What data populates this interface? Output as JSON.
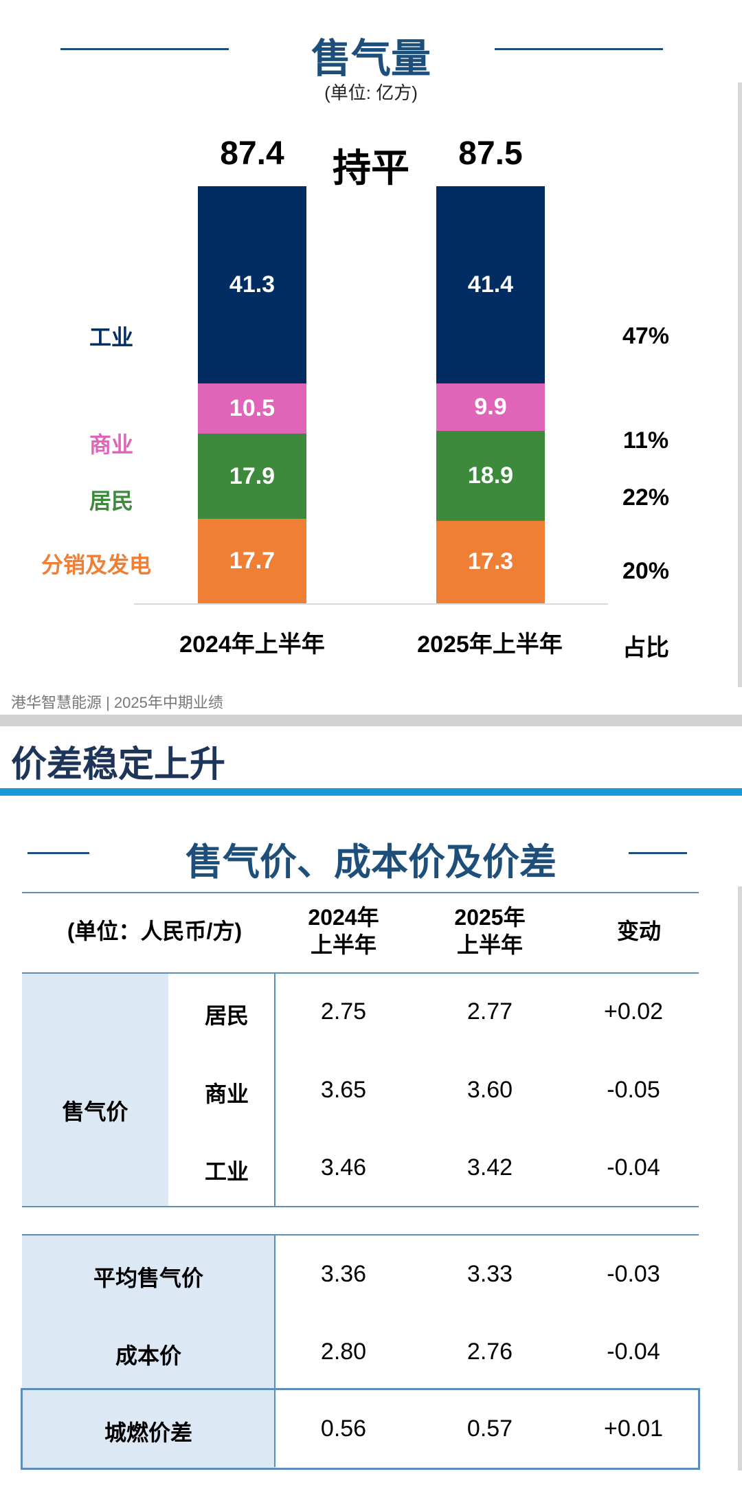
{
  "volume": {
    "title": "售气量",
    "unit": "(单位: 亿方)",
    "headline": "持平",
    "share_label": "占比"
  },
  "chart_data": {
    "type": "bar",
    "stacked": true,
    "title": "售气量",
    "unit": "(单位: 亿方)",
    "categories": [
      "2024年上半年",
      "2025年上半年"
    ],
    "totals": [
      "87.4",
      "87.5"
    ],
    "series": [
      {
        "name": "分销及发电",
        "values": [
          17.7,
          17.3
        ],
        "color": "#ee7f35",
        "share": "20%"
      },
      {
        "name": "居民",
        "values": [
          17.9,
          18.9
        ],
        "color": "#3d8a3d",
        "share": "22%"
      },
      {
        "name": "商业",
        "values": [
          10.5,
          9.9
        ],
        "color": "#e065b8",
        "share": "11%"
      },
      {
        "name": "工业",
        "values": [
          41.3,
          41.4
        ],
        "color": "#022d62",
        "share": "47%"
      }
    ]
  },
  "footer": "港华智慧能源 | 2025年中期业绩",
  "section_title": "价差稳定上升",
  "price": {
    "title": "售气价、成本价及价差",
    "unit_header": "(单位：人民币/方)",
    "col_2024": "2024年\n上半年",
    "col_2025": "2025年\n上半年",
    "col_change": "变动",
    "group_label": "售气价",
    "rows": [
      {
        "label": "居民",
        "v2024": "2.75",
        "v2025": "2.77",
        "change": "+0.02"
      },
      {
        "label": "商业",
        "v2024": "3.65",
        "v2025": "3.60",
        "change": "-0.05"
      },
      {
        "label": "工业",
        "v2024": "3.46",
        "v2025": "3.42",
        "change": "-0.04"
      }
    ],
    "summary": [
      {
        "label": "平均售气价",
        "v2024": "3.36",
        "v2025": "3.33",
        "change": "-0.03"
      },
      {
        "label": "成本价",
        "v2024": "2.80",
        "v2025": "2.76",
        "change": "-0.04"
      },
      {
        "label": "城燃价差",
        "v2024": "0.56",
        "v2025": "0.57",
        "change": "+0.01"
      }
    ]
  }
}
